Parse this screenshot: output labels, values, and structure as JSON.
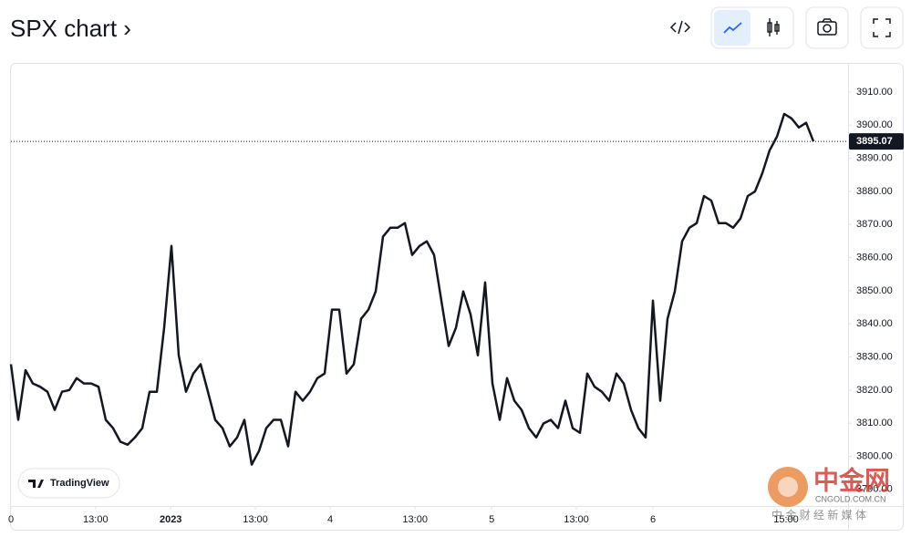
{
  "header": {
    "title": "SPX chart ›"
  },
  "chart_data": {
    "type": "line",
    "series": [
      {
        "name": "SPX",
        "color": "#131722",
        "values": [
          3827.8,
          3811,
          3826,
          3822,
          3821,
          3819.5,
          3814,
          3819.5,
          3820,
          3823.6,
          3822,
          3822,
          3821,
          3811,
          3808.5,
          3804.4,
          3803.5,
          3805.7,
          3808.5,
          3819.5,
          3819.5,
          3838.8,
          3863.5,
          3830.5,
          3819.5,
          3825,
          3827.8,
          3819.5,
          3811,
          3808.5,
          3803,
          3805.7,
          3811,
          3797.5,
          3801.6,
          3808.5,
          3811,
          3811,
          3803,
          3819.5,
          3816.8,
          3819.5,
          3823.6,
          3825,
          3844.3,
          3844.3,
          3825,
          3827.8,
          3841.5,
          3844.3,
          3849.8,
          3866.3,
          3869,
          3869,
          3870.4,
          3860.8,
          3863.5,
          3864.9,
          3860.8,
          3847,
          3833.3,
          3838.8,
          3849.8,
          3842.9,
          3830.5,
          3852.5,
          3822,
          3811,
          3823.6,
          3816.8,
          3814,
          3808.5,
          3805.7,
          3809.9,
          3811,
          3808.5,
          3816.8,
          3808.5,
          3807.1,
          3825,
          3821,
          3819.5,
          3816.8,
          3825,
          3822,
          3814,
          3808.5,
          3805.7,
          3847,
          3816.8,
          3841.5,
          3849.8,
          3864.9,
          3869,
          3870.4,
          3878.6,
          3877.2,
          3870.4,
          3870.4,
          3869,
          3871.8,
          3878.6,
          3880,
          3885.5,
          3892.4,
          3896.5,
          3903.4,
          3902,
          3899.3,
          3900.7,
          3895.07
        ]
      }
    ],
    "last_price": 3895.07,
    "xlim": [
      0,
      114.75
    ],
    "xticks": [
      {
        "value": 0,
        "label": "0"
      },
      {
        "value": 11.6,
        "label": "13:00"
      },
      {
        "value": 21.9,
        "label": "2023"
      },
      {
        "value": 33.5,
        "label": "13:00"
      },
      {
        "value": 43.75,
        "label": "4"
      },
      {
        "value": 55.4,
        "label": "13:00"
      },
      {
        "value": 65.9,
        "label": "5"
      },
      {
        "value": 77.5,
        "label": "13:00"
      },
      {
        "value": 88,
        "label": "6"
      },
      {
        "value": 106.25,
        "label": "15:00"
      }
    ],
    "ylim": [
      3785,
      3918.5
    ],
    "yticks": [
      {
        "value": 3790,
        "label": "3790.00"
      },
      {
        "value": 3800,
        "label": "3800.00"
      },
      {
        "value": 3810,
        "label": "3810.00"
      },
      {
        "value": 3820,
        "label": "3820.00"
      },
      {
        "value": 3830,
        "label": "3830.00"
      },
      {
        "value": 3840,
        "label": "3840.00"
      },
      {
        "value": 3850,
        "label": "3850.00"
      },
      {
        "value": 3860,
        "label": "3860.00"
      },
      {
        "value": 3870,
        "label": "3870.00"
      },
      {
        "value": 3880,
        "label": "3880.00"
      },
      {
        "value": 3890,
        "label": "3890.00"
      },
      {
        "value": 3900,
        "label": "3900.00"
      },
      {
        "value": 3910,
        "label": "3910.00"
      }
    ]
  },
  "logo": {
    "text": "TradingView"
  },
  "watermark": {
    "name": "中金网",
    "site": "CNGOLD.COM.CN",
    "tagline": "中 金 财 经 新 媒 体"
  }
}
